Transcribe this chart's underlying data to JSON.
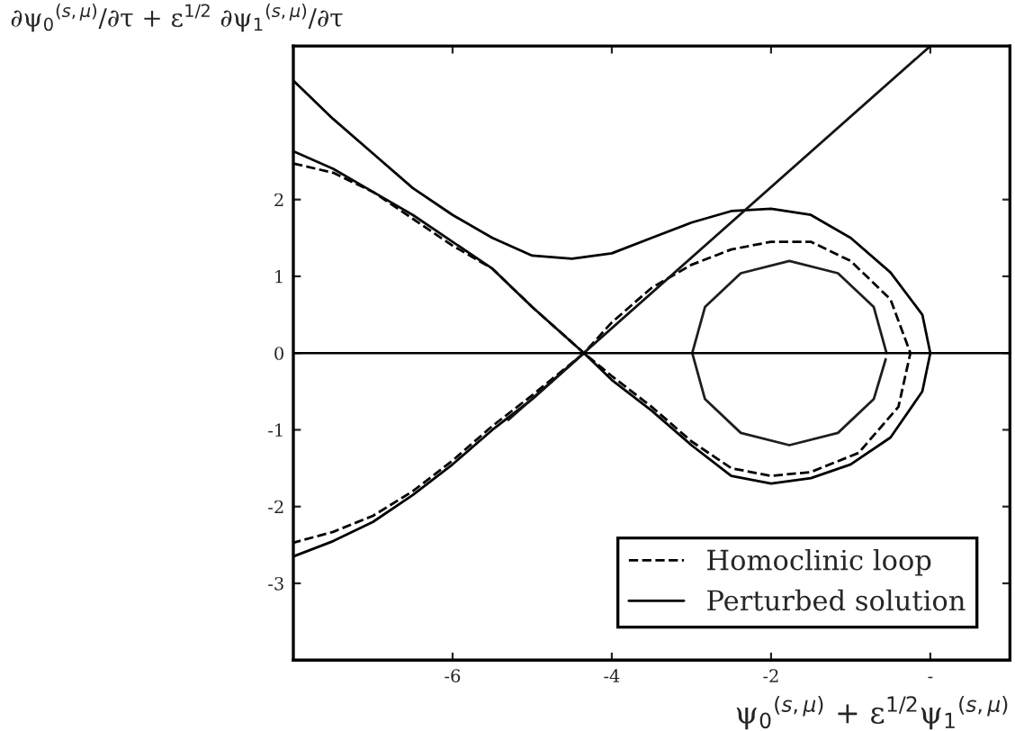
{
  "chart_data": {
    "type": "line",
    "xlabel": "ψ$_{0}$$^{(s,μ)}$ + ε$^{1/2}$ψ$_{1}$$^{(s,μ)}$",
    "ylabel": "∂ψ$_{0}$$^{(s,μ)}$/∂τ + ε$^{1/2}$ ∂ψ$_{1}$$^{(s,μ)}$/∂τ",
    "xlim": [
      -8,
      1
    ],
    "ylim": [
      -4,
      4
    ],
    "xticks": [
      -6,
      -4,
      -2,
      {
        "value": 0,
        "label": "-"
      }
    ],
    "yticks": [
      -3,
      -2,
      -1,
      0,
      1,
      2
    ],
    "grid": false,
    "legend": "bottom right",
    "marker": "none",
    "ref_lines": [
      {
        "axis": "y",
        "value": 0,
        "color": "#000000",
        "line_style": "solid"
      }
    ],
    "series": [
      {
        "name": "Homoclinic loop",
        "color": "#000000",
        "line_style": "dashed",
        "x": [
          -8,
          -7.5,
          -7,
          -6.5,
          -6,
          -5.5,
          -5,
          -4.35,
          -4,
          -3.5,
          -3,
          -2.5,
          -2,
          -1.5,
          -1,
          -0.5,
          -0.25,
          -0.4,
          -0.9,
          -1.5,
          -2,
          -2.5,
          -3,
          -3.5,
          -4,
          -4.35,
          -5,
          -5.5,
          -6,
          -6.5,
          -7,
          -7.5,
          -8
        ],
        "values": [
          2.47,
          2.35,
          2.1,
          1.75,
          1.4,
          1.1,
          0.6,
          0,
          0.4,
          0.85,
          1.15,
          1.35,
          1.45,
          1.45,
          1.2,
          0.7,
          0,
          -0.7,
          -1.3,
          -1.55,
          -1.6,
          -1.5,
          -1.15,
          -0.7,
          -0.3,
          0,
          -0.55,
          -0.95,
          -1.4,
          -1.8,
          -2.12,
          -2.33,
          -2.47
        ]
      },
      {
        "name": "Perturbed solution",
        "color": "#000000",
        "line_style": "solid",
        "x": [
          -8,
          -7.5,
          -7,
          -6.5,
          -6,
          -5.5,
          -5,
          -4.5,
          -4,
          -3.5,
          -3,
          -2.5,
          -2,
          -1.5,
          -1,
          -0.5,
          -0.1,
          0,
          -0.1,
          -0.5,
          -1,
          -1.5,
          -2,
          -2.5,
          -3,
          -3.5,
          -4,
          -4.35,
          -5,
          -5.5,
          -6,
          -6.5,
          -7,
          -7.5,
          -8
        ],
        "values": [
          3.55,
          3.05,
          2.6,
          2.15,
          1.8,
          1.5,
          1.27,
          1.23,
          1.3,
          1.5,
          1.7,
          1.85,
          1.88,
          1.8,
          1.5,
          1.05,
          0.5,
          0,
          -0.5,
          -1.1,
          -1.45,
          -1.63,
          -1.7,
          -1.6,
          -1.2,
          -0.75,
          -0.35,
          0,
          -0.6,
          -1.0,
          -1.45,
          -1.85,
          -2.2,
          -2.45,
          -2.65
        ]
      },
      {
        "color": "#0a0a0a",
        "line_style": "solid",
        "x": [
          -8,
          -7.5,
          -7,
          -6.5,
          -6,
          -5.5,
          -5,
          -4.35
        ],
        "values": [
          2.63,
          2.4,
          2.1,
          1.8,
          1.45,
          1.1,
          0.6,
          0
        ]
      },
      {
        "color": "#141414",
        "line_style": "solid",
        "x": [
          -5.3,
          0
        ],
        "values": [
          -0.87,
          4.0
        ]
      },
      {
        "color": "#1e1e1e",
        "line_style": "solid",
        "x": [
          -0.55,
          -0.71,
          -1.16,
          -1.77,
          -2.38,
          -2.83,
          -2.99,
          -2.83,
          -2.38,
          -1.77,
          -1.16,
          -0.71,
          -0.56
        ],
        "values": [
          0,
          0.6,
          1.04,
          1.2,
          1.04,
          0.6,
          0,
          -0.6,
          -1.04,
          -1.2,
          -1.04,
          -0.6,
          -0.08
        ]
      }
    ]
  }
}
